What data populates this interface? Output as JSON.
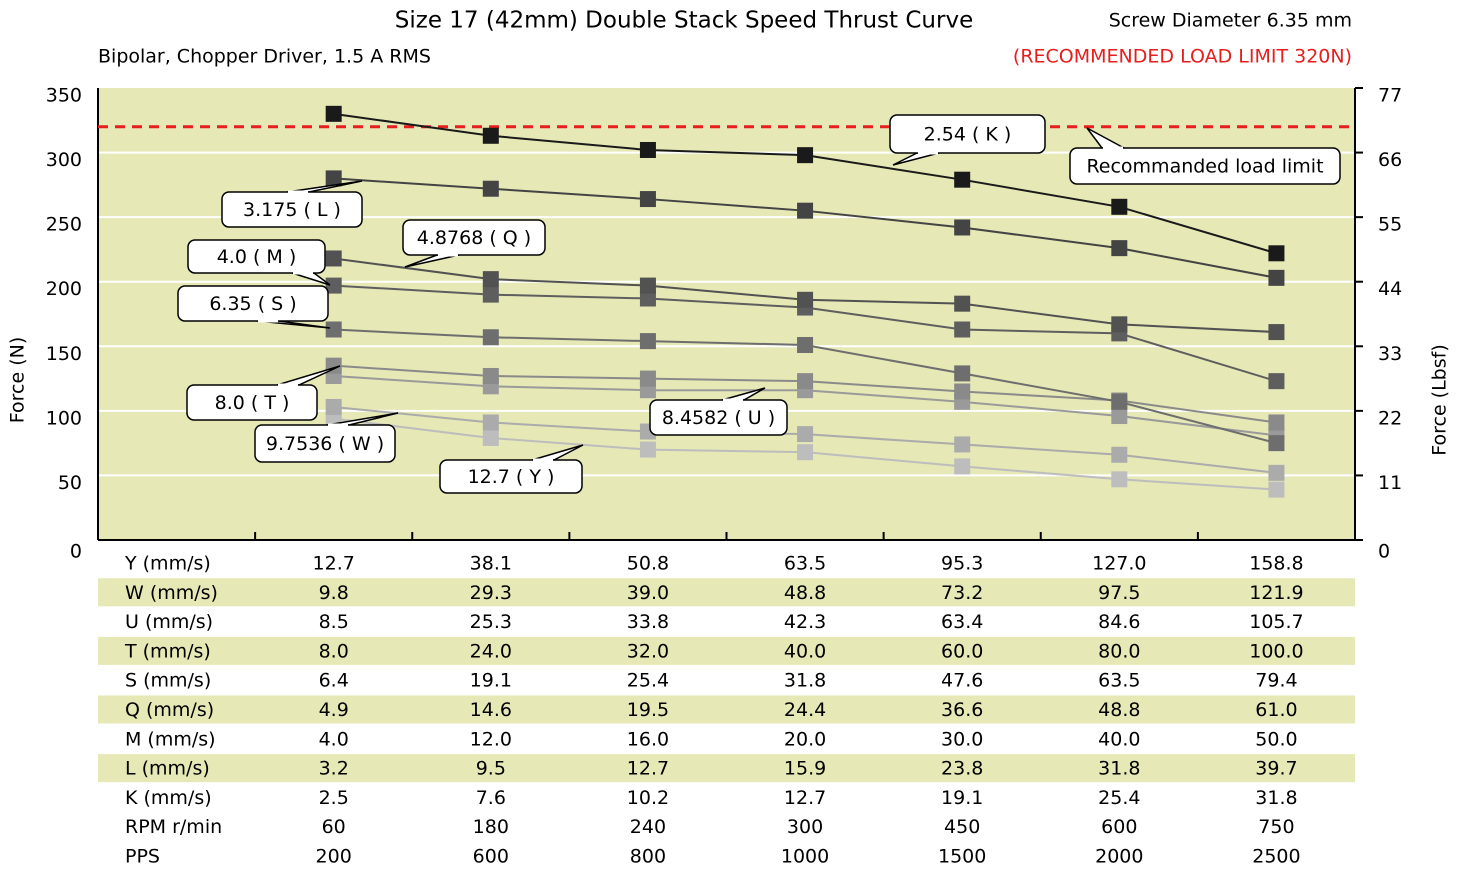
{
  "chart_data": {
    "type": "line",
    "title": "Size 17 (42mm) Double Stack Speed Thrust Curve",
    "subtitle": "Bipolar, Chopper Driver, 1.5 A RMS",
    "screw_note": "Screw Diameter 6.35 mm",
    "limit_note": "(RECOMMENDED LOAD LIMIT 320N)",
    "ylabel": "Force (N)",
    "y2label": "Force (Lbsf)",
    "ylim": [
      0,
      350
    ],
    "yticks": [
      0,
      50,
      100,
      150,
      200,
      250,
      300,
      350
    ],
    "y2lim": [
      0,
      77
    ],
    "y2ticks": [
      0,
      11,
      22,
      33,
      44,
      55,
      66,
      77
    ],
    "grid": true,
    "limit": {
      "value": 320,
      "label": "Recommanded load limit",
      "color": "#e61e1e"
    },
    "series": [
      {
        "name": "2.54 ( K )",
        "color": "#1a1a1a",
        "values": [
          330,
          313,
          302,
          298,
          279,
          258,
          222
        ]
      },
      {
        "name": "3.175 ( L )",
        "color": "#444444",
        "values": [
          280,
          272,
          264,
          255,
          242,
          226,
          203
        ]
      },
      {
        "name": "4.0  ( M )",
        "color": "#525252",
        "values": [
          218,
          202,
          197,
          186,
          183,
          167,
          161
        ]
      },
      {
        "name": "4.8768 ( Q )",
        "color": "#5e5e5e",
        "values": [
          197,
          190,
          187,
          180,
          163,
          160,
          123
        ]
      },
      {
        "name": "6.35 ( S )",
        "color": "#6e6e6e",
        "values": [
          163,
          157,
          154,
          151,
          129,
          107,
          75
        ]
      },
      {
        "name": "8.0  ( T )",
        "color": "#8a8a8a",
        "values": [
          135,
          127,
          125,
          123,
          115,
          108,
          91
        ]
      },
      {
        "name": "8.4582 ( U )",
        "color": "#9a9a9a",
        "values": [
          127,
          119,
          116,
          116,
          107,
          96,
          81
        ]
      },
      {
        "name": "9.7536 ( W )",
        "color": "#ababab",
        "values": [
          103,
          91,
          84,
          82,
          74,
          66,
          52
        ]
      },
      {
        "name": "12.7 ( Y )",
        "color": "#bdbdbd",
        "values": [
          94,
          79,
          70,
          68,
          57,
          47,
          39
        ]
      }
    ],
    "table": {
      "rows": [
        [
          "Y (mm/s)",
          "12.7",
          "38.1",
          "50.8",
          "63.5",
          "95.3",
          "127.0",
          "158.8"
        ],
        [
          "W (mm/s)",
          "9.8",
          "29.3",
          "39.0",
          "48.8",
          "73.2",
          "97.5",
          "121.9"
        ],
        [
          "U (mm/s)",
          "8.5",
          "25.3",
          "33.8",
          "42.3",
          "63.4",
          "84.6",
          "105.7"
        ],
        [
          "T (mm/s)",
          "8.0",
          "24.0",
          "32.0",
          "40.0",
          "60.0",
          "80.0",
          "100.0"
        ],
        [
          "S (mm/s)",
          "6.4",
          "19.1",
          "25.4",
          "31.8",
          "47.6",
          "63.5",
          "79.4"
        ],
        [
          "Q (mm/s)",
          "4.9",
          "14.6",
          "19.5",
          "24.4",
          "36.6",
          "48.8",
          "61.0"
        ],
        [
          "M (mm/s)",
          "4.0",
          "12.0",
          "16.0",
          "20.0",
          "30.0",
          "40.0",
          "50.0"
        ],
        [
          "L (mm/s)",
          "3.2",
          "9.5",
          "12.7",
          "15.9",
          "23.8",
          "31.8",
          "39.7"
        ],
        [
          "K (mm/s)",
          "2.5",
          "7.6",
          "10.2",
          "12.7",
          "19.1",
          "25.4",
          "31.8"
        ],
        [
          "RPM r/min",
          "60",
          "180",
          "240",
          "300",
          "450",
          "600",
          "750"
        ],
        [
          "PPS",
          "200",
          "600",
          "800",
          "1000",
          "1500",
          "2000",
          "2500"
        ]
      ]
    }
  }
}
